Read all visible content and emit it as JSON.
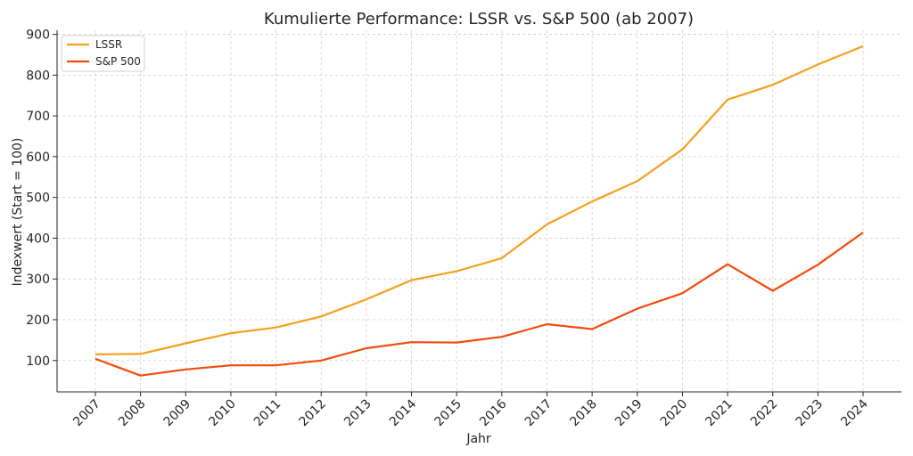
{
  "chart_data": {
    "type": "line",
    "title": "Kumulierte Performance: LSSR vs. S&P 500 (ab 2007)",
    "xlabel": "Jahr",
    "ylabel": "Indexwert (Start = 100)",
    "x": [
      "2007",
      "2008",
      "2009",
      "2010",
      "2011",
      "2012",
      "2013",
      "2014",
      "2015",
      "2016",
      "2017",
      "2018",
      "2019",
      "2020",
      "2021",
      "2022",
      "2023",
      "2024"
    ],
    "yticks": [
      100,
      200,
      300,
      400,
      500,
      600,
      700,
      800,
      900
    ],
    "ylim": [
      23,
      910
    ],
    "grid": true,
    "legend_position": "top-left",
    "series": [
      {
        "name": "LSSR",
        "color": "#f5a01d",
        "values": [
          115,
          116,
          142,
          167,
          181,
          208,
          250,
          297,
          319,
          351,
          434,
          490,
          540,
          618,
          740,
          776,
          826,
          871
        ]
      },
      {
        "name": "S&P 500",
        "color": "#f24b0d",
        "values": [
          104,
          63,
          78,
          88,
          88,
          100,
          130,
          145,
          144,
          158,
          189,
          177,
          227,
          265,
          336,
          271,
          335,
          414
        ]
      }
    ]
  }
}
